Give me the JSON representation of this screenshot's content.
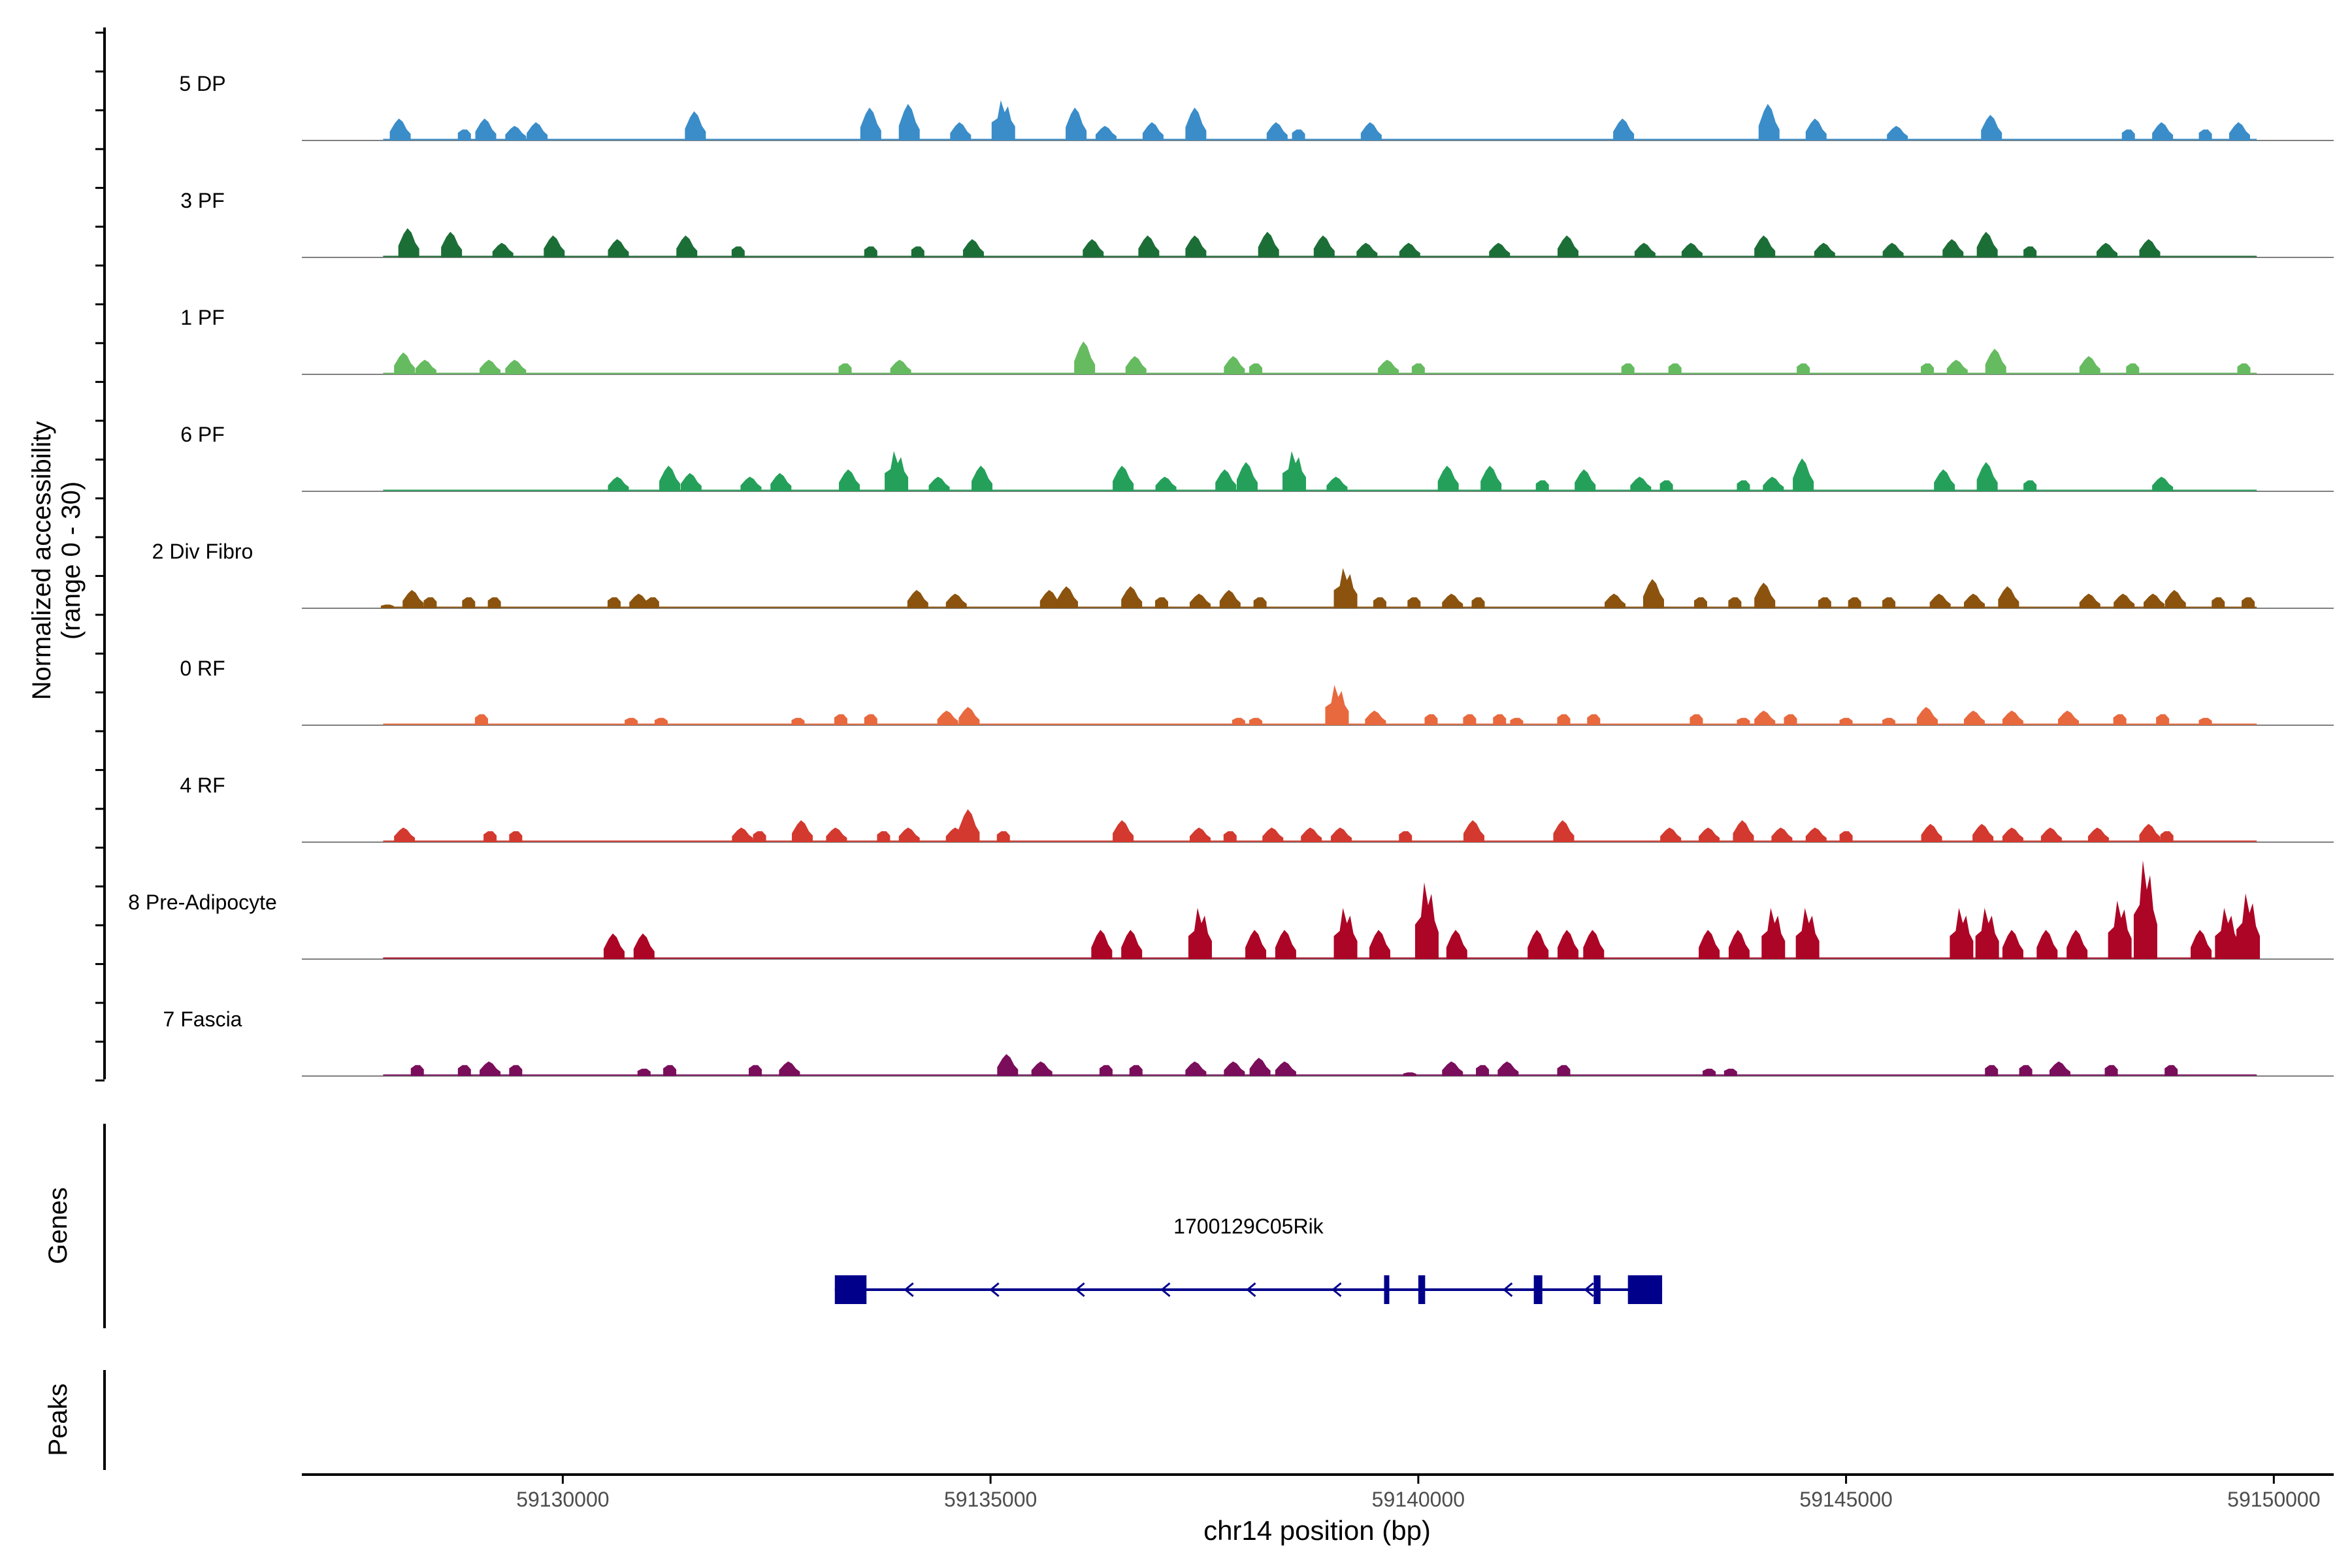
{
  "chart_data": {
    "type": "area",
    "title": "",
    "ylabel_line1": "Normalized accessibility",
    "ylabel_line2": "(range 0 - 30)",
    "xlabel": "chr14 position (bp)",
    "xlim": [
      59126950,
      59150700
    ],
    "ylim": [
      0,
      30
    ],
    "x_ticks": [
      59130000,
      59135000,
      59140000,
      59145000,
      59150000
    ],
    "x_tick_labels": [
      "59130000",
      "59135000",
      "59140000",
      "59145000",
      "59150000"
    ],
    "track_group_labels": {
      "genes": "Genes",
      "peaks": "Peaks"
    },
    "series": [
      {
        "name": "5 DP",
        "color": "#3a8dc9",
        "peaks": [
          [
            59128100,
            6
          ],
          [
            59128850,
            3
          ],
          [
            59129100,
            6
          ],
          [
            59129450,
            4
          ],
          [
            59129700,
            5
          ],
          [
            59131550,
            8
          ],
          [
            59133600,
            9
          ],
          [
            59134050,
            10
          ],
          [
            59134650,
            5
          ],
          [
            59135150,
            11
          ],
          [
            59136000,
            9
          ],
          [
            59136350,
            4
          ],
          [
            59136900,
            5
          ],
          [
            59137400,
            9
          ],
          [
            59138350,
            5
          ],
          [
            59138600,
            3
          ],
          [
            59139450,
            5
          ],
          [
            59142400,
            6
          ],
          [
            59144100,
            10
          ],
          [
            59144650,
            6
          ],
          [
            59145600,
            4
          ],
          [
            59146700,
            7
          ],
          [
            59148300,
            3
          ],
          [
            59148700,
            5
          ],
          [
            59149200,
            3
          ],
          [
            59149600,
            5
          ]
        ]
      },
      {
        "name": "3 PF",
        "color": "#1c6e37",
        "peaks": [
          [
            59128200,
            8
          ],
          [
            59128700,
            7
          ],
          [
            59129300,
            4
          ],
          [
            59129900,
            6
          ],
          [
            59130650,
            5
          ],
          [
            59131450,
            6
          ],
          [
            59132050,
            3
          ],
          [
            59133600,
            3
          ],
          [
            59134150,
            3
          ],
          [
            59134800,
            5
          ],
          [
            59136200,
            5
          ],
          [
            59136850,
            6
          ],
          [
            59137400,
            6
          ],
          [
            59138250,
            7
          ],
          [
            59138900,
            6
          ],
          [
            59139400,
            4
          ],
          [
            59139900,
            4
          ],
          [
            59140950,
            4
          ],
          [
            59141750,
            6
          ],
          [
            59142650,
            4
          ],
          [
            59143200,
            4
          ],
          [
            59144050,
            6
          ],
          [
            59144750,
            4
          ],
          [
            59145550,
            4
          ],
          [
            59146250,
            5
          ],
          [
            59146650,
            7
          ],
          [
            59147150,
            3
          ],
          [
            59148050,
            4
          ],
          [
            59148550,
            5
          ]
        ]
      },
      {
        "name": "1 PF",
        "color": "#66bb60",
        "peaks": [
          [
            59128150,
            6
          ],
          [
            59128400,
            4
          ],
          [
            59129150,
            4
          ],
          [
            59129450,
            4
          ],
          [
            59133300,
            3
          ],
          [
            59133950,
            4
          ],
          [
            59136100,
            9
          ],
          [
            59136700,
            5
          ],
          [
            59137850,
            5
          ],
          [
            59138100,
            3
          ],
          [
            59139650,
            4
          ],
          [
            59140000,
            3
          ],
          [
            59142450,
            3
          ],
          [
            59143000,
            3
          ],
          [
            59144500,
            3
          ],
          [
            59145950,
            3
          ],
          [
            59146300,
            4
          ],
          [
            59146750,
            7
          ],
          [
            59147850,
            5
          ],
          [
            59148350,
            3
          ],
          [
            59149650,
            3
          ]
        ]
      },
      {
        "name": "6 PF",
        "color": "#24a05a",
        "peaks": [
          [
            59130650,
            4
          ],
          [
            59131250,
            7
          ],
          [
            59131500,
            5
          ],
          [
            59132200,
            4
          ],
          [
            59132550,
            5
          ],
          [
            59133350,
            6
          ],
          [
            59133900,
            11
          ],
          [
            59134400,
            4
          ],
          [
            59134900,
            7
          ],
          [
            59136550,
            7
          ],
          [
            59137050,
            4
          ],
          [
            59137750,
            6
          ],
          [
            59138000,
            8
          ],
          [
            59138550,
            11
          ],
          [
            59139050,
            4
          ],
          [
            59140350,
            7
          ],
          [
            59140850,
            7
          ],
          [
            59141450,
            3
          ],
          [
            59141950,
            6
          ],
          [
            59142600,
            4
          ],
          [
            59142900,
            3
          ],
          [
            59143800,
            3
          ],
          [
            59144150,
            4
          ],
          [
            59144500,
            9
          ],
          [
            59146150,
            6
          ],
          [
            59146650,
            8
          ],
          [
            59147150,
            3
          ],
          [
            59148700,
            4
          ]
        ]
      },
      {
        "name": "2 Div Fibro",
        "color": "#8b530e",
        "peaks": [
          [
            59127950,
            1
          ],
          [
            59128250,
            5
          ],
          [
            59128450,
            3
          ],
          [
            59128900,
            3
          ],
          [
            59129200,
            3
          ],
          [
            59130600,
            3
          ],
          [
            59130900,
            4
          ],
          [
            59131050,
            3
          ],
          [
            59134150,
            5
          ],
          [
            59134600,
            4
          ],
          [
            59135700,
            5
          ],
          [
            59135900,
            6
          ],
          [
            59136650,
            6
          ],
          [
            59137000,
            3
          ],
          [
            59137450,
            4
          ],
          [
            59137800,
            5
          ],
          [
            59138150,
            3
          ],
          [
            59139150,
            11
          ],
          [
            59139550,
            3
          ],
          [
            59139950,
            3
          ],
          [
            59140400,
            4
          ],
          [
            59140700,
            3
          ],
          [
            59142300,
            4
          ],
          [
            59142750,
            8
          ],
          [
            59143300,
            3
          ],
          [
            59143700,
            3
          ],
          [
            59144050,
            7
          ],
          [
            59144750,
            3
          ],
          [
            59145100,
            3
          ],
          [
            59145500,
            3
          ],
          [
            59146100,
            4
          ],
          [
            59146500,
            4
          ],
          [
            59146900,
            6
          ],
          [
            59147850,
            4
          ],
          [
            59148250,
            4
          ],
          [
            59148600,
            4
          ],
          [
            59148850,
            5
          ],
          [
            59149350,
            3
          ],
          [
            59149700,
            3
          ]
        ]
      },
      {
        "name": "0 RF",
        "color": "#e8693e",
        "peaks": [
          [
            59129050,
            3
          ],
          [
            59130800,
            2
          ],
          [
            59131150,
            2
          ],
          [
            59132750,
            2
          ],
          [
            59133250,
            3
          ],
          [
            59133600,
            3
          ],
          [
            59134500,
            4
          ],
          [
            59134750,
            5
          ],
          [
            59137900,
            2
          ],
          [
            59138100,
            2
          ],
          [
            59139050,
            11
          ],
          [
            59139500,
            4
          ],
          [
            59140150,
            3
          ],
          [
            59140600,
            3
          ],
          [
            59140950,
            3
          ],
          [
            59141150,
            2
          ],
          [
            59141700,
            3
          ],
          [
            59142050,
            3
          ],
          [
            59143250,
            3
          ],
          [
            59143800,
            2
          ],
          [
            59144050,
            4
          ],
          [
            59144350,
            3
          ],
          [
            59145000,
            2
          ],
          [
            59145500,
            2
          ],
          [
            59145950,
            5
          ],
          [
            59146500,
            4
          ],
          [
            59146950,
            4
          ],
          [
            59147600,
            4
          ],
          [
            59148200,
            3
          ],
          [
            59148700,
            3
          ],
          [
            59149200,
            2
          ]
        ]
      },
      {
        "name": "4 RF",
        "color": "#d3392e",
        "peaks": [
          [
            59128150,
            4
          ],
          [
            59129150,
            3
          ],
          [
            59129450,
            3
          ],
          [
            59132100,
            4
          ],
          [
            59132300,
            3
          ],
          [
            59132800,
            6
          ],
          [
            59133200,
            4
          ],
          [
            59133750,
            3
          ],
          [
            59134050,
            4
          ],
          [
            59134600,
            4
          ],
          [
            59134750,
            9
          ],
          [
            59135150,
            3
          ],
          [
            59136550,
            6
          ],
          [
            59137450,
            4
          ],
          [
            59137800,
            3
          ],
          [
            59138300,
            4
          ],
          [
            59138750,
            4
          ],
          [
            59139100,
            4
          ],
          [
            59139850,
            3
          ],
          [
            59140650,
            6
          ],
          [
            59141700,
            6
          ],
          [
            59142950,
            4
          ],
          [
            59143400,
            4
          ],
          [
            59143800,
            6
          ],
          [
            59144250,
            4
          ],
          [
            59144650,
            4
          ],
          [
            59145000,
            3
          ],
          [
            59146000,
            5
          ],
          [
            59146600,
            5
          ],
          [
            59146950,
            4
          ],
          [
            59147400,
            4
          ],
          [
            59147950,
            4
          ],
          [
            59148550,
            5
          ],
          [
            59148750,
            3
          ]
        ]
      },
      {
        "name": "8 Pre-Adipocyte",
        "color": "#ad0525",
        "peaks": [
          [
            59130600,
            7
          ],
          [
            59130950,
            7
          ],
          [
            59136300,
            8
          ],
          [
            59136650,
            8
          ],
          [
            59137450,
            14
          ],
          [
            59138100,
            8
          ],
          [
            59138450,
            8
          ],
          [
            59139150,
            14
          ],
          [
            59139550,
            8
          ],
          [
            59140100,
            21
          ],
          [
            59140450,
            8
          ],
          [
            59141400,
            8
          ],
          [
            59141750,
            8
          ],
          [
            59142050,
            8
          ],
          [
            59143400,
            8
          ],
          [
            59143750,
            8
          ],
          [
            59144150,
            14
          ],
          [
            59144550,
            14
          ],
          [
            59146350,
            14
          ],
          [
            59146650,
            14
          ],
          [
            59146950,
            8
          ],
          [
            59147350,
            8
          ],
          [
            59147700,
            8
          ],
          [
            59148200,
            16
          ],
          [
            59148500,
            27
          ],
          [
            59149150,
            8
          ],
          [
            59149450,
            14
          ],
          [
            59149700,
            18
          ]
        ]
      },
      {
        "name": "7 Fascia",
        "color": "#7a0e5b",
        "peaks": [
          [
            59128300,
            3
          ],
          [
            59128850,
            3
          ],
          [
            59129150,
            4
          ],
          [
            59129450,
            3
          ],
          [
            59130950,
            2
          ],
          [
            59131250,
            3
          ],
          [
            59132250,
            3
          ],
          [
            59132650,
            4
          ],
          [
            59135200,
            6
          ],
          [
            59135600,
            4
          ],
          [
            59136350,
            3
          ],
          [
            59136700,
            3
          ],
          [
            59137400,
            4
          ],
          [
            59137850,
            4
          ],
          [
            59138150,
            5
          ],
          [
            59138450,
            4
          ],
          [
            59139900,
            1
          ],
          [
            59140400,
            4
          ],
          [
            59140750,
            3
          ],
          [
            59141050,
            4
          ],
          [
            59141700,
            3
          ],
          [
            59143400,
            2
          ],
          [
            59143650,
            2
          ],
          [
            59146700,
            3
          ],
          [
            59147100,
            3
          ],
          [
            59147500,
            4
          ],
          [
            59148100,
            3
          ],
          [
            59148800,
            3
          ]
        ]
      }
    ],
    "gene": {
      "name": "1700129C05Rik",
      "strand": "-",
      "start": 59133180,
      "end": 59142850,
      "exons": [
        [
          59133180,
          59133550
        ],
        [
          59139600,
          59139660
        ],
        [
          59140000,
          59140080
        ],
        [
          59141350,
          59141450
        ],
        [
          59142050,
          59142130
        ],
        [
          59142450,
          59142850
        ]
      ],
      "arrows": [
        59134050,
        59135050,
        59136050,
        59137050,
        59138050,
        59139050,
        59141050,
        59142000
      ]
    },
    "peaks": []
  }
}
